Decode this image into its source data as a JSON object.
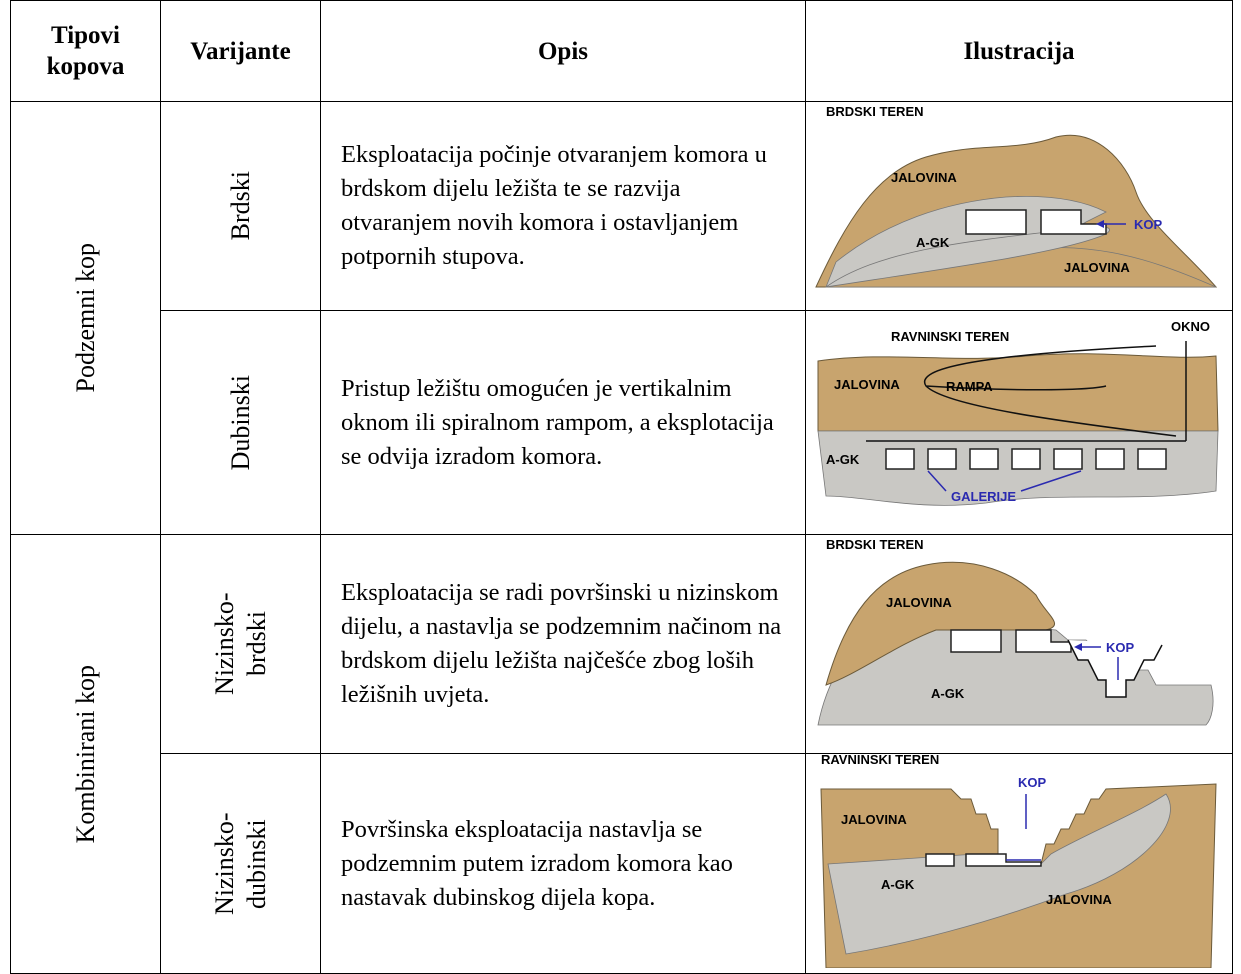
{
  "table": {
    "header": [
      "Tipovi kopova",
      "Varijante",
      "Opis",
      "Ilustracija"
    ],
    "groups": [
      {
        "type": "Podzemni kop",
        "rows": [
          {
            "variant": "Brdski",
            "description": "Eksploatacija počinje otvaranjem komora u brdskom dijelu ležišta te se razvija otvaranjem novih komora i ostavljanjem potpornih stupova.",
            "illustration": {
              "title": "BRDSKI TEREN",
              "labels": [
                "JALOVINA",
                "A-GK",
                "KOP",
                "JALOVINA"
              ]
            }
          },
          {
            "variant": "Dubinski",
            "description": "Pristup ležištu omogućen je vertikalnim oknom ili spiralnom rampom, a eksplotacija se odvija izradom komora.",
            "illustration": {
              "title": "RAVNINSKI TEREN",
              "labels": [
                "OKNO",
                "JALOVINA",
                "RAMPA",
                "A-GK",
                "GALERIJE"
              ]
            }
          }
        ]
      },
      {
        "type": "Kombinirani kop",
        "rows": [
          {
            "variant": "Nizinsko-brdski",
            "description": "Eksploatacija se radi površinski u nizinskom dijelu, a nastavlja se podzemnim načinom na brdskom dijelu ležišta najčešće zbog loših ležišnih uvjeta.",
            "illustration": {
              "title": "BRDSKI TEREN",
              "labels": [
                "JALOVINA",
                "KOP",
                "A-GK"
              ]
            }
          },
          {
            "variant": "Nizinsko-dubinski",
            "description": "Površinska eksploatacija nastavlja se podzemnim putem izradom komora kao nastavak dubinskog dijela kopa.",
            "illustration": {
              "title": "RAVNINSKI TEREN",
              "labels": [
                "KOP",
                "JALOVINA",
                "A-GK",
                "JALOVINA"
              ]
            }
          }
        ]
      }
    ]
  }
}
